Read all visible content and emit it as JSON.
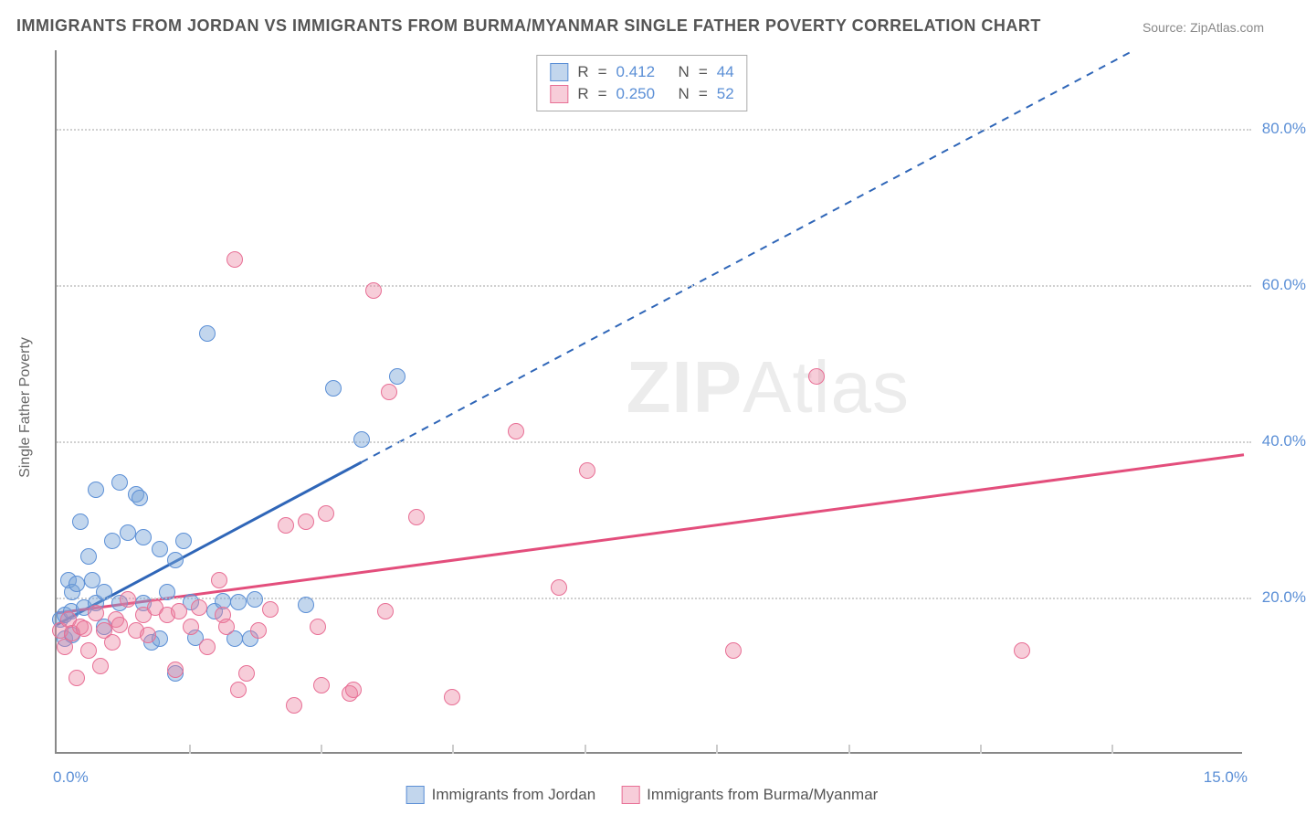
{
  "title": "IMMIGRANTS FROM JORDAN VS IMMIGRANTS FROM BURMA/MYANMAR SINGLE FATHER POVERTY CORRELATION CHART",
  "source": "Source: ZipAtlas.com",
  "y_axis_label": "Single Father Poverty",
  "watermark_prefix": "ZIP",
  "watermark_suffix": "Atlas",
  "chart": {
    "type": "scatter",
    "xlim": [
      0,
      15
    ],
    "ylim": [
      0,
      90
    ],
    "x_ticks": [
      0,
      15
    ],
    "x_tick_labels": [
      "0.0%",
      "15.0%"
    ],
    "x_minor_ticks": [
      1.67,
      3.33,
      5.0,
      6.67,
      8.33,
      10.0,
      11.67,
      13.33
    ],
    "y_ticks": [
      20,
      40,
      60,
      80
    ],
    "y_tick_labels": [
      "20.0%",
      "40.0%",
      "60.0%",
      "80.0%"
    ],
    "background_color": "#ffffff",
    "grid_color": "#d0d0d0",
    "axis_color": "#888888",
    "marker_radius": 9,
    "marker_border_width": 1.5,
    "series": [
      {
        "name": "Immigrants from Jordan",
        "fill": "rgba(120,165,216,0.45)",
        "stroke": "#5b8fd6",
        "r_value": "0.412",
        "n_value": "44",
        "trend": {
          "intercept": 16.5,
          "slope": 5.4,
          "solid_until_x": 3.85,
          "color": "#2f66b8",
          "width": 3
        },
        "points": [
          [
            0.05,
            17.0
          ],
          [
            0.1,
            17.5
          ],
          [
            0.1,
            14.5
          ],
          [
            0.15,
            22.0
          ],
          [
            0.18,
            18.0
          ],
          [
            0.2,
            20.5
          ],
          [
            0.2,
            15.0
          ],
          [
            0.25,
            21.5
          ],
          [
            0.3,
            29.5
          ],
          [
            0.35,
            18.5
          ],
          [
            0.4,
            25.0
          ],
          [
            0.45,
            22.0
          ],
          [
            0.5,
            33.5
          ],
          [
            0.5,
            19.0
          ],
          [
            0.6,
            20.5
          ],
          [
            0.6,
            16.0
          ],
          [
            0.7,
            27.0
          ],
          [
            0.8,
            34.5
          ],
          [
            0.8,
            19.0
          ],
          [
            0.9,
            28.0
          ],
          [
            1.0,
            33.0
          ],
          [
            1.05,
            32.5
          ],
          [
            1.1,
            27.5
          ],
          [
            1.1,
            19.0
          ],
          [
            1.2,
            14.0
          ],
          [
            1.3,
            26.0
          ],
          [
            1.3,
            14.5
          ],
          [
            1.4,
            20.5
          ],
          [
            1.5,
            24.5
          ],
          [
            1.5,
            10.0
          ],
          [
            1.6,
            27.0
          ],
          [
            1.7,
            19.2
          ],
          [
            1.75,
            14.6
          ],
          [
            1.9,
            53.5
          ],
          [
            2.0,
            18.0
          ],
          [
            2.1,
            19.3
          ],
          [
            2.25,
            14.5
          ],
          [
            2.3,
            19.2
          ],
          [
            2.45,
            14.5
          ],
          [
            2.5,
            19.5
          ],
          [
            3.15,
            18.8
          ],
          [
            3.5,
            46.5
          ],
          [
            3.85,
            40.0
          ],
          [
            4.3,
            48.0
          ]
        ]
      },
      {
        "name": "Immigrants from Burma/Myanmar",
        "fill": "rgba(235,130,160,0.40)",
        "stroke": "#e86f95",
        "r_value": "0.250",
        "n_value": "52",
        "trend": {
          "intercept": 18.0,
          "slope": 1.35,
          "solid_until_x": 15,
          "color": "#e34e7c",
          "width": 3
        },
        "points": [
          [
            0.05,
            15.5
          ],
          [
            0.1,
            13.5
          ],
          [
            0.15,
            17.0
          ],
          [
            0.2,
            15.2
          ],
          [
            0.25,
            9.5
          ],
          [
            0.3,
            16.0
          ],
          [
            0.35,
            15.8
          ],
          [
            0.4,
            13.0
          ],
          [
            0.5,
            17.8
          ],
          [
            0.55,
            11.0
          ],
          [
            0.6,
            15.5
          ],
          [
            0.7,
            14.0
          ],
          [
            0.75,
            17.0
          ],
          [
            0.8,
            16.2
          ],
          [
            0.9,
            19.5
          ],
          [
            1.0,
            15.5
          ],
          [
            1.1,
            17.5
          ],
          [
            1.15,
            15.0
          ],
          [
            1.25,
            18.5
          ],
          [
            1.4,
            17.5
          ],
          [
            1.5,
            10.5
          ],
          [
            1.55,
            18.0
          ],
          [
            1.7,
            16.0
          ],
          [
            1.8,
            18.5
          ],
          [
            1.9,
            13.5
          ],
          [
            2.05,
            22.0
          ],
          [
            2.1,
            17.5
          ],
          [
            2.15,
            16.0
          ],
          [
            2.25,
            63.0
          ],
          [
            2.3,
            8.0
          ],
          [
            2.4,
            10.0
          ],
          [
            2.55,
            15.5
          ],
          [
            2.7,
            18.2
          ],
          [
            2.9,
            29.0
          ],
          [
            3.0,
            6.0
          ],
          [
            3.15,
            29.5
          ],
          [
            3.3,
            16.0
          ],
          [
            3.35,
            8.5
          ],
          [
            3.4,
            30.5
          ],
          [
            3.7,
            7.5
          ],
          [
            3.75,
            8.0
          ],
          [
            4.0,
            59.0
          ],
          [
            4.15,
            18.0
          ],
          [
            4.2,
            46.0
          ],
          [
            4.55,
            30.0
          ],
          [
            5.0,
            7.0
          ],
          [
            5.8,
            41.0
          ],
          [
            6.35,
            21.0
          ],
          [
            6.7,
            36.0
          ],
          [
            8.55,
            13.0
          ],
          [
            9.6,
            48.0
          ],
          [
            12.2,
            13.0
          ]
        ]
      }
    ]
  },
  "legend_top": {
    "r_label": "R",
    "n_label": "N",
    "eq": "=",
    "value_color": "#5b8fd6",
    "label_color": "#555555"
  },
  "legend_bottom_labels": [
    "Immigrants from Jordan",
    "Immigrants from Burma/Myanmar"
  ]
}
